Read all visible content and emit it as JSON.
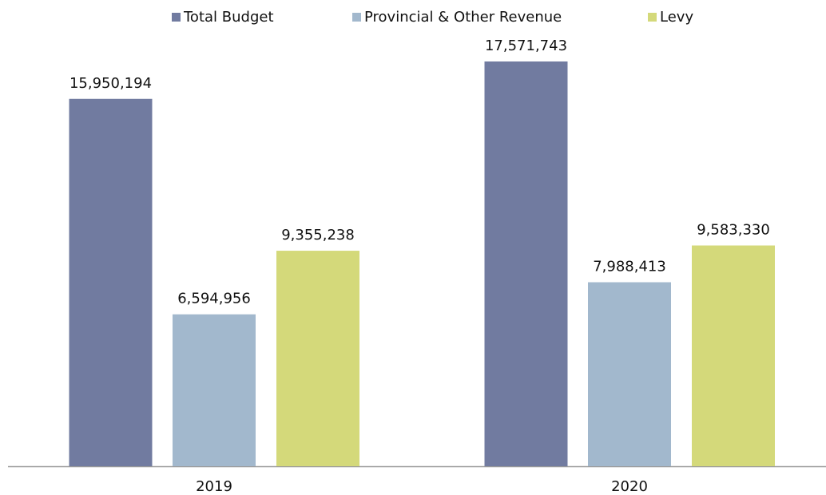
{
  "chart_data": {
    "type": "bar",
    "categories": [
      "2019",
      "2020"
    ],
    "series": [
      {
        "name": "Total Budget",
        "color": "#717ba0",
        "values": [
          15950194,
          17571743
        ],
        "value_labels": [
          "15,950,194",
          "17,571,743"
        ]
      },
      {
        "name": "Provincial & Other Revenue",
        "color": "#a2b8cd",
        "values": [
          6594956,
          7988413
        ],
        "value_labels": [
          "6,594,956",
          "7,988,413"
        ]
      },
      {
        "name": "Levy",
        "color": "#d4d97a",
        "values": [
          9355238,
          9583330
        ],
        "value_labels": [
          "9,355,238",
          "9,583,330"
        ]
      }
    ],
    "legend": "top"
  }
}
